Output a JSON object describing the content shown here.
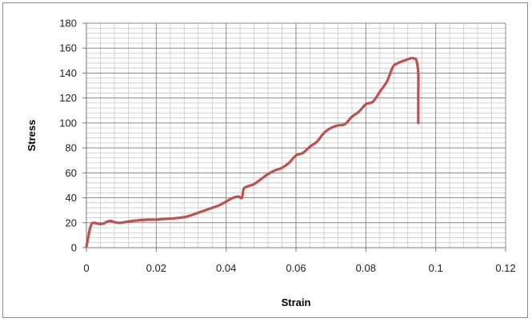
{
  "chart_data": {
    "type": "line",
    "title": "",
    "xlabel": "Strain",
    "ylabel": "Stress",
    "xlim": [
      0,
      0.12
    ],
    "ylim": [
      0,
      180
    ],
    "x_ticks": [
      "0",
      "0.02",
      "0.04",
      "0.06",
      "0.08",
      "0.1",
      "0.12"
    ],
    "y_ticks": [
      "0",
      "20",
      "40",
      "60",
      "80",
      "100",
      "120",
      "140",
      "160",
      "180"
    ],
    "grid": true,
    "legend": "none",
    "series": [
      {
        "color": "#c0504d",
        "x": [
          0,
          0.0005,
          0.001,
          0.0015,
          0.002,
          0.003,
          0.004,
          0.005,
          0.006,
          0.007,
          0.008,
          0.009,
          0.01,
          0.012,
          0.015,
          0.018,
          0.02,
          0.022,
          0.025,
          0.028,
          0.03,
          0.032,
          0.035,
          0.038,
          0.04,
          0.042,
          0.0435,
          0.0445,
          0.045,
          0.046,
          0.048,
          0.05,
          0.052,
          0.054,
          0.056,
          0.058,
          0.06,
          0.062,
          0.064,
          0.066,
          0.068,
          0.07,
          0.072,
          0.074,
          0.076,
          0.078,
          0.08,
          0.082,
          0.084,
          0.086,
          0.087,
          0.088,
          0.09,
          0.092,
          0.093,
          0.094,
          0.0945,
          0.095,
          0.095,
          0.095
        ],
        "y": [
          1,
          8,
          15,
          19,
          20,
          19.5,
          19,
          19.5,
          21,
          21.5,
          20.5,
          20,
          20,
          21,
          22,
          22.5,
          22.5,
          23,
          23.5,
          24.5,
          26,
          28,
          31,
          34,
          37,
          40,
          41,
          40,
          47,
          49,
          51,
          55,
          59,
          62,
          64,
          68,
          74,
          76,
          81,
          85,
          92,
          96,
          98,
          99,
          105,
          109,
          115,
          117,
          125,
          133,
          140,
          146,
          149,
          151,
          152,
          151.5,
          150,
          140,
          120,
          100
        ]
      }
    ]
  }
}
